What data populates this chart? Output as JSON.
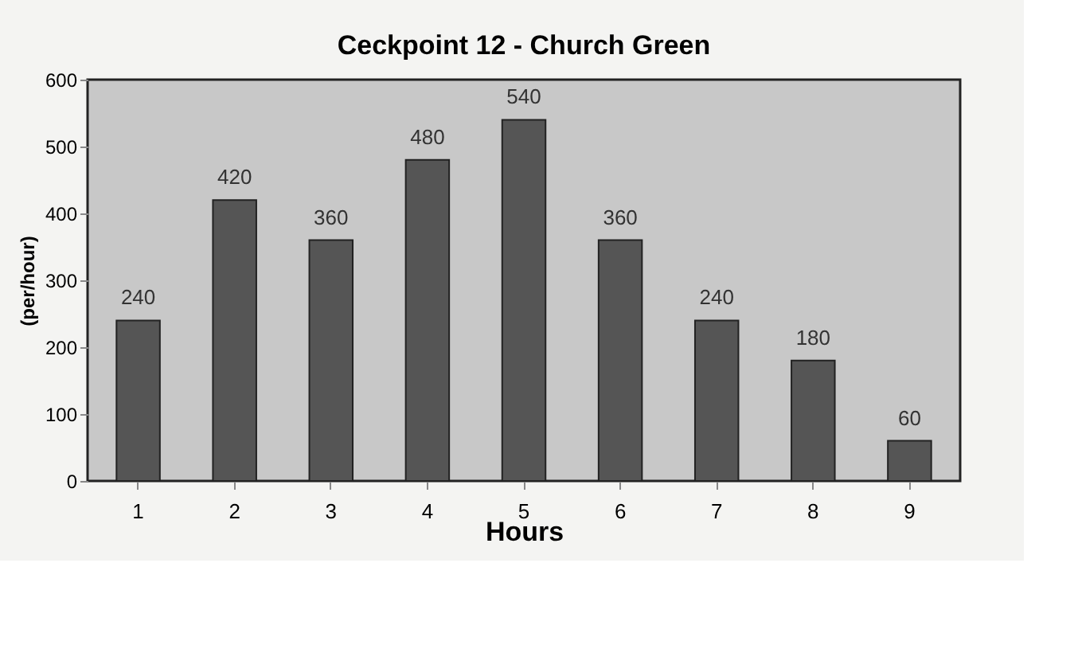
{
  "chart_data": {
    "type": "bar",
    "title": "Ceckpoint 12 - Church Green",
    "xlabel": "Hours",
    "ylabel": "(per/hour)",
    "categories": [
      "1",
      "2",
      "3",
      "4",
      "5",
      "6",
      "7",
      "8",
      "9"
    ],
    "values": [
      240,
      420,
      360,
      480,
      540,
      360,
      240,
      180,
      60
    ],
    "color": "#555555",
    "ylim": [
      0,
      600
    ],
    "yticks": [
      0,
      100,
      200,
      300,
      400,
      500,
      600
    ],
    "grid": false,
    "data_labels": true
  }
}
